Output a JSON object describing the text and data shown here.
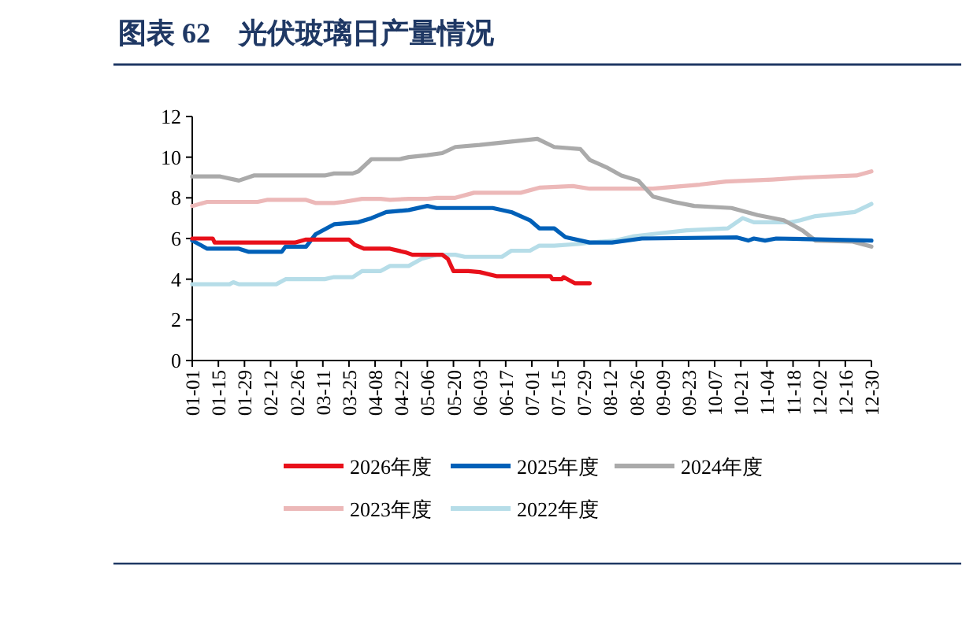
{
  "chart_data": {
    "type": "line",
    "title": "图表 62　光伏玻璃日产量情况",
    "xlim": [
      "--01-01",
      "--12-30"
    ],
    "xticks": [
      {
        "value": "--01-01",
        "label": "01-01"
      },
      {
        "value": "--01-15",
        "label": "01-15"
      },
      {
        "value": "--01-29",
        "label": "01-29"
      },
      {
        "value": "--02-12",
        "label": "02-12"
      },
      {
        "value": "--02-26",
        "label": "02-26"
      },
      {
        "value": "--03-11",
        "label": "03-11"
      },
      {
        "value": "--03-25",
        "label": "03-25"
      },
      {
        "value": "--04-08",
        "label": "04-08"
      },
      {
        "value": "--04-22",
        "label": "04-22"
      },
      {
        "value": "--05-06",
        "label": "05-06"
      },
      {
        "value": "--05-20",
        "label": "05-20"
      },
      {
        "value": "--06-03",
        "label": "06-03"
      },
      {
        "value": "--06-17",
        "label": "06-17"
      },
      {
        "value": "--07-01",
        "label": "07-01"
      },
      {
        "value": "--07-15",
        "label": "07-15"
      },
      {
        "value": "--07-29",
        "label": "07-29"
      },
      {
        "value": "--08-12",
        "label": "08-12"
      },
      {
        "value": "--08-26",
        "label": "08-26"
      },
      {
        "value": "--09-09",
        "label": "09-09"
      },
      {
        "value": "--09-23",
        "label": "09-23"
      },
      {
        "value": "--10-07",
        "label": "10-07"
      },
      {
        "value": "--10-21",
        "label": "10-21"
      },
      {
        "value": "--11-04",
        "label": "11-04"
      },
      {
        "value": "--11-18",
        "label": "11-18"
      },
      {
        "value": "--12-02",
        "label": "12-02"
      },
      {
        "value": "--12-16",
        "label": "12-16"
      },
      {
        "value": "--12-30",
        "label": "12-30"
      }
    ],
    "ylim": [
      0,
      12
    ],
    "yticks": [
      0,
      2,
      4,
      6,
      8,
      10,
      12
    ],
    "grid": false,
    "legend": "bottom",
    "marker": "none",
    "line_style": "solid",
    "series": [
      {
        "name": "2026年度",
        "color": "#e8101a",
        "x": [
          "--01-01",
          "--01-12",
          "--01-13",
          "--02-25",
          "--03-02",
          "--03-25",
          "--03-28",
          "--04-02",
          "--04-16",
          "--04-25",
          "--04-28",
          "--05-14",
          "--05-17",
          "--05-20",
          "--05-28",
          "--06-03",
          "--06-12",
          "--07-11",
          "--07-12",
          "--07-17",
          "--07-18",
          "--07-24",
          "--08-01"
        ],
        "values": [
          6.0,
          6.0,
          5.8,
          5.8,
          5.95,
          5.95,
          5.7,
          5.5,
          5.5,
          5.3,
          5.2,
          5.2,
          5.0,
          4.4,
          4.4,
          4.35,
          4.15,
          4.15,
          4.0,
          4.0,
          4.1,
          3.8,
          3.8
        ]
      },
      {
        "name": "2025年度",
        "color": "#0060b8",
        "x": [
          "--01-01",
          "--01-09",
          "--01-26",
          "--01-31",
          "--02-18",
          "--02-20",
          "--03-02",
          "--03-07",
          "--03-17",
          "--03-30",
          "--04-06",
          "--04-14",
          "--04-26",
          "--05-06",
          "--05-11",
          "--06-10",
          "--06-20",
          "--06-30",
          "--07-05",
          "--07-13",
          "--07-19",
          "--08-01",
          "--08-13",
          "--08-29",
          "--10-19",
          "--10-25",
          "--10-28",
          "--11-03",
          "--11-09",
          "--12-30"
        ],
        "values": [
          5.9,
          5.5,
          5.5,
          5.35,
          5.35,
          5.6,
          5.6,
          6.2,
          6.7,
          6.8,
          7.0,
          7.3,
          7.4,
          7.6,
          7.5,
          7.5,
          7.3,
          6.9,
          6.5,
          6.5,
          6.07,
          5.8,
          5.8,
          6.0,
          6.05,
          5.9,
          6.0,
          5.9,
          6.0,
          5.9
        ]
      },
      {
        "name": "2024年度",
        "color": "#aaaaaa",
        "x": [
          "--01-01",
          "--01-16",
          "--01-26",
          "--02-03",
          "--03-12",
          "--03-17",
          "--03-27",
          "--03-30",
          "--04-06",
          "--04-21",
          "--04-26",
          "--05-06",
          "--05-14",
          "--05-21",
          "--06-03",
          "--06-13",
          "--07-04",
          "--07-13",
          "--07-27",
          "--08-01",
          "--08-10",
          "--08-18",
          "--08-27",
          "--09-04",
          "--09-15",
          "--09-26",
          "--10-16",
          "--10-30",
          "--11-13",
          "--11-23",
          "--11-30",
          "--12-20",
          "--12-30"
        ],
        "values": [
          9.05,
          9.05,
          8.85,
          9.1,
          9.1,
          9.2,
          9.2,
          9.3,
          9.9,
          9.9,
          10.0,
          10.1,
          10.2,
          10.5,
          10.6,
          10.7,
          10.9,
          10.5,
          10.4,
          9.87,
          9.5,
          9.1,
          8.85,
          8.06,
          7.8,
          7.6,
          7.5,
          7.15,
          6.9,
          6.4,
          5.9,
          5.85,
          5.6
        ]
      },
      {
        "name": "2023年度",
        "color": "#ecb8b8",
        "x": [
          "--01-01",
          "--01-09",
          "--02-05",
          "--02-10",
          "--03-02",
          "--03-07",
          "--03-17",
          "--03-22",
          "--04-01",
          "--04-11",
          "--04-16",
          "--04-26",
          "--05-06",
          "--05-11",
          "--05-21",
          "--05-31",
          "--06-25",
          "--07-05",
          "--07-23",
          "--08-01",
          "--09-04",
          "--09-10",
          "--09-29",
          "--10-13",
          "--11-07",
          "--11-24",
          "--12-22",
          "--12-30"
        ],
        "values": [
          7.6,
          7.8,
          7.8,
          7.9,
          7.9,
          7.75,
          7.75,
          7.8,
          7.95,
          7.95,
          7.9,
          7.95,
          7.95,
          8.0,
          8.0,
          8.25,
          8.25,
          8.5,
          8.58,
          8.45,
          8.45,
          8.5,
          8.65,
          8.8,
          8.9,
          9.0,
          9.1,
          9.3
        ]
      },
      {
        "name": "2022年度",
        "color": "#b6dde8",
        "x": [
          "--01-01",
          "--01-21",
          "--01-23",
          "--01-26",
          "--02-15",
          "--02-20",
          "--03-12",
          "--03-17",
          "--03-27",
          "--04-01",
          "--04-11",
          "--04-16",
          "--04-26",
          "--05-03",
          "--05-11",
          "--05-21",
          "--05-26",
          "--06-15",
          "--06-20",
          "--06-30",
          "--07-05",
          "--07-13",
          "--07-27",
          "--08-01",
          "--08-15",
          "--08-24",
          "--09-07",
          "--09-22",
          "--10-14",
          "--10-22",
          "--10-28",
          "--11-17",
          "--11-22",
          "--11-30",
          "--12-21",
          "--12-30"
        ],
        "values": [
          3.75,
          3.75,
          3.85,
          3.75,
          3.75,
          4.0,
          4.0,
          4.1,
          4.1,
          4.4,
          4.4,
          4.65,
          4.65,
          5.0,
          5.2,
          5.2,
          5.1,
          5.1,
          5.4,
          5.4,
          5.65,
          5.65,
          5.74,
          5.8,
          5.9,
          6.1,
          6.25,
          6.4,
          6.5,
          7.0,
          6.8,
          6.8,
          6.9,
          7.1,
          7.3,
          7.7
        ]
      }
    ]
  }
}
